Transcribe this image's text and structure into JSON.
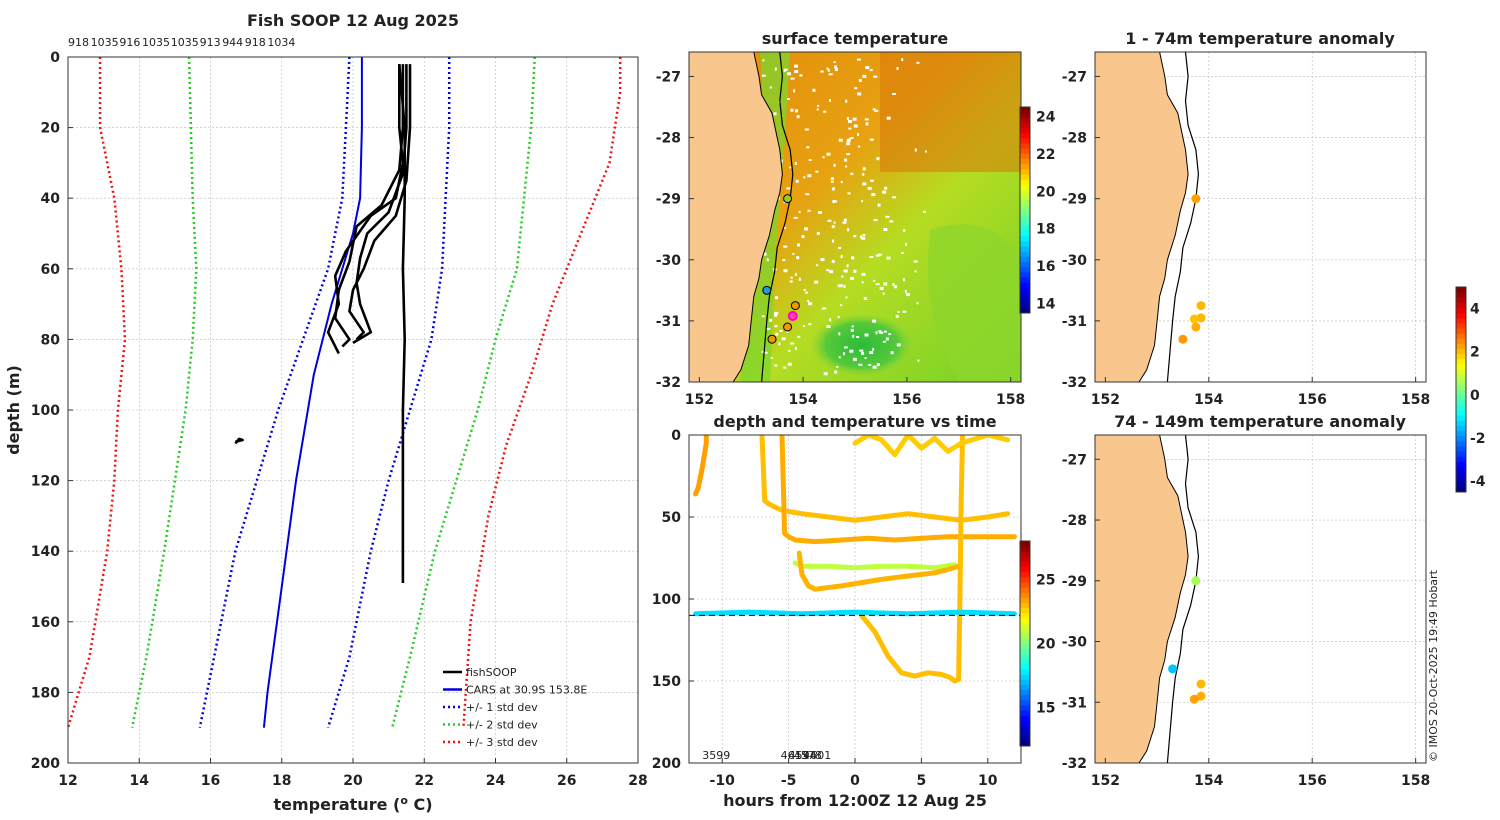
{
  "chart_data": [
    {
      "type": "line",
      "title": "Fish SOOP 12 Aug 2025",
      "xlabel": "temperature (",
      "xlabel_sup": "o",
      "xlabel_end": " C)",
      "ylabel": "depth (m)",
      "xlim": [
        12,
        28
      ],
      "ylim": [
        0,
        200
      ],
      "y_inverted": true,
      "xticks": [
        12,
        14,
        16,
        18,
        20,
        22,
        24,
        26,
        28
      ],
      "yticks": [
        0,
        20,
        40,
        60,
        80,
        100,
        120,
        140,
        160,
        180,
        200
      ],
      "top_labels": [
        "918",
        "1035",
        "916",
        "1035",
        "1035",
        "913",
        "944",
        "918",
        "1034"
      ],
      "legend": [
        {
          "label": "fishSOOP",
          "color": "#000000",
          "style": "solid"
        },
        {
          "label": "CARS at 30.9S 153.8E",
          "color": "#0000dd",
          "style": "solid"
        },
        {
          "label": "+/- 1 std dev",
          "color": "#0000dd",
          "style": "dotted"
        },
        {
          "label": "+/- 2 std dev",
          "color": "#22cc22",
          "style": "dotted"
        },
        {
          "label": "+/- 3 std dev",
          "color": "#ee1111",
          "style": "dotted"
        }
      ],
      "series": [
        {
          "name": "CARS",
          "color": "#0000dd",
          "style": "solid",
          "t": [
            20.25,
            20.25,
            20.2,
            20.0,
            19.4,
            18.9,
            18.4,
            18.0,
            17.6,
            17.5
          ],
          "d": [
            0,
            20,
            40,
            50,
            70,
            90,
            120,
            150,
            180,
            190
          ]
        },
        {
          "name": "-1 std",
          "color": "#0000dd",
          "style": "dotted",
          "t": [
            19.9,
            19.8,
            19.7,
            19.3,
            18.6,
            17.9,
            17.3,
            16.7,
            16.1,
            15.7
          ],
          "d": [
            0,
            20,
            40,
            60,
            80,
            100,
            120,
            140,
            170,
            190
          ]
        },
        {
          "name": "+1 std",
          "color": "#0000dd",
          "style": "dotted",
          "t": [
            22.7,
            22.7,
            22.6,
            22.5,
            22.2,
            21.6,
            21.0,
            20.5,
            19.9,
            19.3
          ],
          "d": [
            0,
            20,
            40,
            60,
            80,
            100,
            120,
            140,
            170,
            190
          ]
        },
        {
          "name": "-2 std",
          "color": "#22cc22",
          "style": "dotted",
          "t": [
            15.4,
            15.45,
            15.5,
            15.6,
            15.5,
            15.3,
            15.0,
            14.7,
            14.2,
            13.8
          ],
          "d": [
            0,
            20,
            40,
            60,
            80,
            100,
            120,
            140,
            170,
            190
          ]
        },
        {
          "name": "+2 std",
          "color": "#22cc22",
          "style": "dotted",
          "t": [
            25.1,
            25.0,
            24.8,
            24.6,
            24.0,
            23.5,
            22.9,
            22.3,
            21.6,
            21.1
          ],
          "d": [
            0,
            20,
            40,
            60,
            80,
            100,
            120,
            140,
            170,
            190
          ]
        },
        {
          "name": "-3 std",
          "color": "#ee1111",
          "style": "dotted",
          "t": [
            12.9,
            12.9,
            13.3,
            13.5,
            13.6,
            13.4,
            13.3,
            13.1,
            12.6,
            12.0
          ],
          "d": [
            0,
            20,
            40,
            60,
            80,
            100,
            120,
            140,
            170,
            190
          ]
        },
        {
          "name": "+3 std",
          "color": "#ee1111",
          "style": "dotted",
          "t": [
            27.5,
            27.5,
            27.2,
            26.4,
            25.6,
            25.0,
            24.3,
            23.8,
            23.3,
            23.1
          ],
          "d": [
            0,
            10,
            30,
            50,
            70,
            90,
            110,
            130,
            160,
            190
          ]
        },
        {
          "name": "fishSOOP 1",
          "color": "#000000",
          "style": "solid",
          "t": [
            21.3,
            21.3,
            21.4,
            21.2,
            20.5,
            19.8,
            19.5,
            19.6,
            19.3,
            19.6
          ],
          "d": [
            2,
            20,
            30,
            40,
            45,
            55,
            62,
            70,
            78,
            84
          ]
        },
        {
          "name": "fishSOOP 2",
          "color": "#000000",
          "style": "solid",
          "t": [
            21.4,
            21.4,
            21.3,
            20.8,
            20.1,
            19.9,
            19.6,
            19.5,
            19.9,
            19.7
          ],
          "d": [
            2,
            20,
            32,
            42,
            48,
            58,
            66,
            74,
            80,
            82
          ]
        },
        {
          "name": "fishSOOP 3",
          "color": "#000000",
          "style": "solid",
          "t": [
            21.5,
            21.5,
            21.4,
            21.0,
            20.4,
            20.2,
            20.1,
            20.2,
            20.5,
            20.0
          ],
          "d": [
            2,
            20,
            33,
            44,
            50,
            57,
            64,
            70,
            78,
            81
          ]
        },
        {
          "name": "fishSOOP 4",
          "color": "#000000",
          "style": "solid",
          "t": [
            21.6,
            21.6,
            21.5,
            21.2,
            20.6,
            20.3,
            20.0,
            19.9,
            20.3,
            20.1
          ],
          "d": [
            2,
            20,
            35,
            45,
            52,
            60,
            66,
            72,
            78,
            80
          ]
        },
        {
          "name": "fishSOOP 5",
          "color": "#000000",
          "style": "solid",
          "t": [
            21.3,
            21.45,
            21.45,
            21.4,
            21.45,
            21.4,
            21.4,
            21.4
          ],
          "d": [
            2,
            20,
            40,
            60,
            80,
            100,
            130,
            149
          ]
        },
        {
          "name": "fishSOOP 6",
          "color": "#000000",
          "style": "solid",
          "t": [
            16.7,
            16.9,
            16.8,
            16.7
          ],
          "d": [
            109,
            108.5,
            108.2,
            109.5
          ]
        }
      ]
    },
    {
      "type": "heatmap",
      "title": "surface temperature",
      "xlim": [
        151.8,
        158.2
      ],
      "ylim": [
        -32,
        -26.6
      ],
      "xticks": [
        152,
        154,
        156,
        158
      ],
      "yticks": [
        -27,
        -28,
        -29,
        -30,
        -31,
        -32
      ],
      "colorbar_ticks": [
        14,
        16,
        18,
        20,
        22,
        24
      ],
      "colorbar_range": [
        13.5,
        24.5
      ],
      "markers": [
        {
          "lon": 153.7,
          "lat": -29.0,
          "fill": "#99cc22"
        },
        {
          "lon": 153.3,
          "lat": -30.5,
          "fill": "#2299dd"
        },
        {
          "lon": 153.85,
          "lat": -30.75,
          "fill": "#ee9900"
        },
        {
          "lon": 153.8,
          "lat": -30.92,
          "fill": "#ff44aa"
        },
        {
          "lon": 153.7,
          "lat": -31.1,
          "fill": "#ee9900"
        },
        {
          "lon": 153.4,
          "lat": -31.3,
          "fill": "#ee9900"
        }
      ]
    },
    {
      "type": "scatter",
      "title": "depth and temperature vs time",
      "xlabel": "hours from 12:00Z 12 Aug 25",
      "xlim": [
        -12.5,
        12.5
      ],
      "ylim": [
        0,
        200
      ],
      "y_inverted": true,
      "xticks": [
        -10,
        -5,
        0,
        5,
        10
      ],
      "yticks": [
        0,
        50,
        100,
        150,
        200
      ],
      "colorbar_ticks": [
        15,
        20,
        25
      ],
      "colorbar_range": [
        12,
        28
      ],
      "bottom_labels": [
        "3599",
        "4613",
        "4594",
        "4578",
        "4601"
      ],
      "reference_depth": 110,
      "tracks": [
        {
          "temp": 23.5,
          "t": [
            -12,
            -11.8,
            -11.5,
            -11.2,
            -11.2
          ],
          "d": [
            36,
            32,
            20,
            5,
            0
          ]
        },
        {
          "temp": 23.0,
          "t": [
            -7,
            -6.8,
            -6.5,
            -6.0,
            -5.5,
            -4,
            -2,
            0,
            2,
            4,
            6,
            8,
            10,
            11.5
          ],
          "d": [
            0,
            40,
            42,
            44,
            46,
            48,
            50,
            52,
            50,
            48,
            50,
            52,
            50,
            48
          ]
        },
        {
          "temp": 23.3,
          "t": [
            -5.5,
            -5.3,
            -5,
            -4.5,
            -3,
            -1,
            1,
            3,
            5,
            7,
            9,
            11,
            12
          ],
          "d": [
            0,
            60,
            62,
            64,
            65,
            64,
            63,
            64,
            63,
            62,
            62,
            62,
            62
          ]
        },
        {
          "temp": 21.0,
          "t": [
            -4.5,
            -4,
            -2,
            0,
            2,
            4,
            6,
            7.5
          ],
          "d": [
            78,
            80,
            80,
            81,
            80,
            80,
            81,
            79
          ]
        },
        {
          "temp": 23.2,
          "t": [
            -4.2,
            -4.0,
            -3.5,
            -3,
            -1,
            0.5,
            2,
            4,
            6,
            7,
            7.8
          ],
          "d": [
            72,
            85,
            92,
            94,
            92,
            90,
            88,
            86,
            84,
            82,
            80
          ]
        },
        {
          "temp": 23.0,
          "t": [
            0.5,
            1.5,
            2.5,
            3.5,
            4.5,
            5.5,
            6.5,
            7.2,
            7.5,
            7.8
          ],
          "d": [
            110,
            120,
            135,
            145,
            147,
            145,
            146,
            148,
            150,
            149
          ]
        },
        {
          "temp": 23.0,
          "t": [
            7.8,
            7.9,
            8.0,
            8.1
          ],
          "d": [
            149,
            100,
            40,
            0
          ]
        },
        {
          "temp": 22.8,
          "t": [
            0,
            1,
            2,
            3,
            4,
            5,
            6,
            7,
            8,
            10,
            11.5
          ],
          "d": [
            5,
            0,
            3,
            12,
            0,
            8,
            2,
            10,
            5,
            0,
            3
          ]
        },
        {
          "temp": 17.5,
          "t": [
            -12,
            -8,
            -4,
            0,
            4,
            8,
            12
          ],
          "d": [
            109,
            108,
            109,
            108,
            109,
            108,
            109
          ]
        }
      ]
    },
    {
      "type": "scatter",
      "title": "1 - 74m temperature anomaly",
      "xlim": [
        151.8,
        158.2
      ],
      "ylim": [
        -32,
        -26.6
      ],
      "xticks": [
        152,
        154,
        156,
        158
      ],
      "yticks": [
        -27,
        -28,
        -29,
        -30,
        -31,
        -32
      ],
      "points": [
        {
          "lon": 153.75,
          "lat": -29.0,
          "anom": 2.3
        },
        {
          "lon": 153.85,
          "lat": -30.75,
          "anom": 2.1
        },
        {
          "lon": 153.85,
          "lat": -30.95,
          "anom": 2.1
        },
        {
          "lon": 153.72,
          "lat": -30.97,
          "anom": 2.0
        },
        {
          "lon": 153.75,
          "lat": -31.1,
          "anom": 2.2
        },
        {
          "lon": 153.5,
          "lat": -31.3,
          "anom": 2.4
        }
      ]
    },
    {
      "type": "scatter",
      "title": "74 - 149m temperature anomaly",
      "xlim": [
        151.8,
        158.2
      ],
      "ylim": [
        -32,
        -26.6
      ],
      "xticks": [
        152,
        154,
        156,
        158
      ],
      "yticks": [
        -27,
        -28,
        -29,
        -30,
        -31,
        -32
      ],
      "points": [
        {
          "lon": 153.75,
          "lat": -29.0,
          "anom": 0.6
        },
        {
          "lon": 153.3,
          "lat": -30.45,
          "anom": -1.5
        },
        {
          "lon": 153.85,
          "lat": -30.7,
          "anom": 2.1
        },
        {
          "lon": 153.85,
          "lat": -30.9,
          "anom": 2.2
        },
        {
          "lon": 153.72,
          "lat": -30.95,
          "anom": 2.3
        }
      ]
    }
  ],
  "anomaly_colorbar": {
    "ticks": [
      4,
      2,
      0,
      -2,
      -4
    ],
    "range": [
      -4.5,
      5
    ]
  },
  "footer": {
    "credit": "© IMOS 20-Oct-2025 19:49 Hobart"
  },
  "colors": {
    "land": "#f9c78e",
    "coast": "#000000",
    "grid": "#bbbbbb"
  }
}
